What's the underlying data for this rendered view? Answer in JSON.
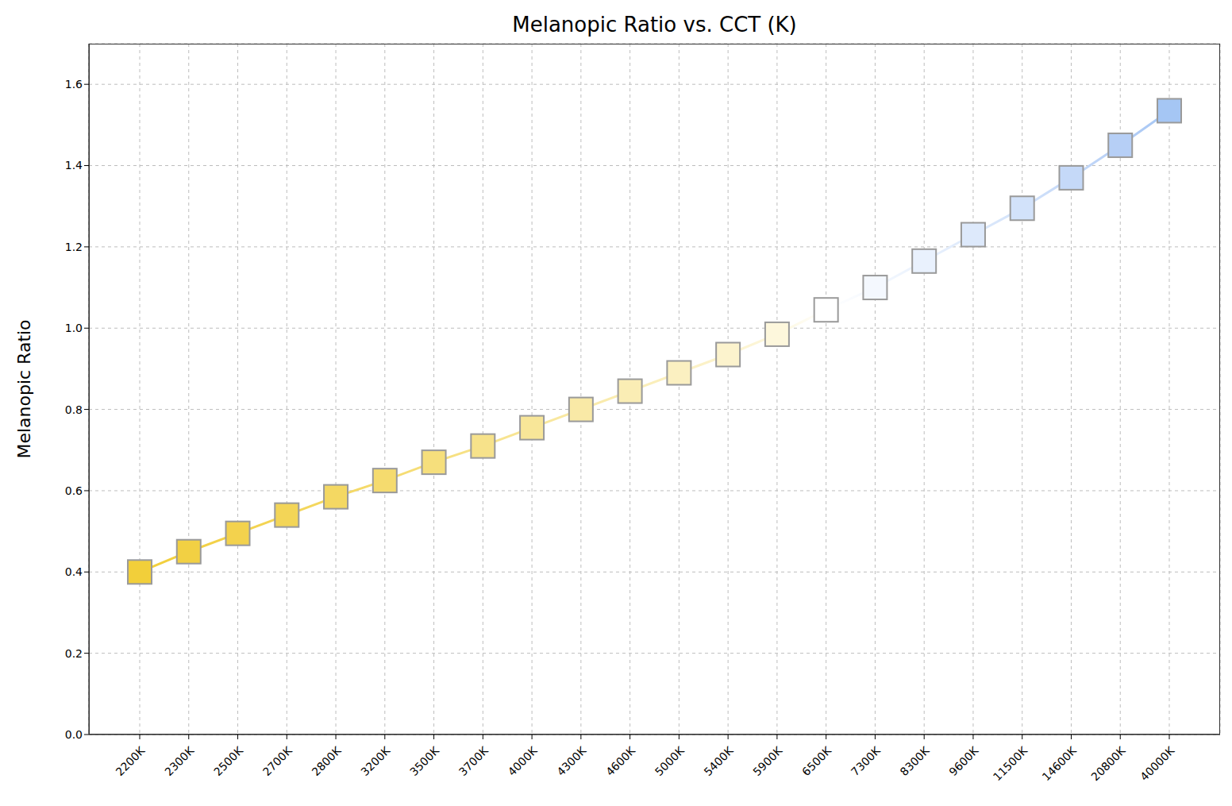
{
  "chart_data": {
    "type": "line",
    "title": "Melanopic Ratio vs. CCT (K)",
    "y_label": "Melanopic Ratio",
    "categories": [
      "2200K",
      "2300K",
      "2500K",
      "2700K",
      "2800K",
      "3200K",
      "3500K",
      "3700K",
      "4000K",
      "4300K",
      "4600K",
      "5000K",
      "5400K",
      "5900K",
      "6500K",
      "7300K",
      "8300K",
      "9600K",
      "11500K",
      "14600K",
      "20800K",
      "40000K"
    ],
    "values": [
      0.4,
      0.45,
      0.495,
      0.54,
      0.585,
      0.625,
      0.67,
      0.71,
      0.755,
      0.8,
      0.845,
      0.89,
      0.935,
      0.985,
      1.045,
      1.1,
      1.165,
      1.23,
      1.295,
      1.37,
      1.45,
      1.535
    ],
    "colors": [
      "#f2cf3a",
      "#f2d043",
      "#f3d24d",
      "#f3d557",
      "#f4d862",
      "#f5db6e",
      "#f6df7c",
      "#f7e28a",
      "#f8e698",
      "#f9e9a6",
      "#faedb4",
      "#fbf0c1",
      "#fcf3cd",
      "#fdf7dc",
      "#ffffff",
      "#f4f8fe",
      "#e9f1fd",
      "#dde9fb",
      "#d2e2fa",
      "#c5d9f8",
      "#b6cff6",
      "#a5c6f4"
    ],
    "marker": "square",
    "line_style": "solid",
    "ylim": [
      0,
      1.7
    ],
    "yticks": [
      {
        "value": 0,
        "label": "0.0"
      },
      0.2,
      0.4,
      0.6,
      0.8,
      {
        "value": 1,
        "label": "1.0"
      },
      1.2,
      1.4,
      1.6
    ],
    "grid": true
  }
}
